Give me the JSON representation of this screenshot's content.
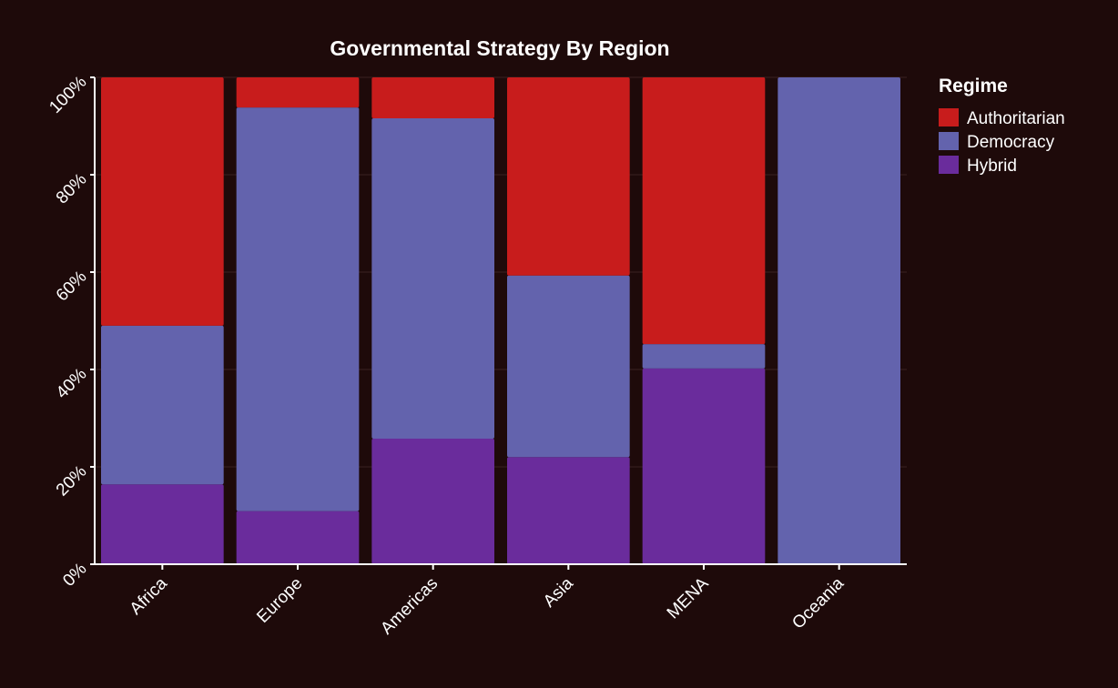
{
  "chart_data": {
    "type": "bar",
    "stacked": true,
    "normalized": true,
    "title": "Governmental Strategy By Region",
    "categories": [
      "Africa",
      "Europe",
      "Americas",
      "Asia",
      "MENA",
      "Oceania"
    ],
    "series": [
      {
        "name": "Hybrid",
        "color": "#6a2c9c",
        "values": [
          16.4,
          10.9,
          25.8,
          22.0,
          40.2,
          0
        ]
      },
      {
        "name": "Democracy",
        "color": "#6363ad",
        "values": [
          32.6,
          82.9,
          65.8,
          37.3,
          5.0,
          100
        ]
      },
      {
        "name": "Authoritarian",
        "color": "#c81c1c",
        "values": [
          51.0,
          6.2,
          8.4,
          40.7,
          54.8,
          0
        ]
      }
    ],
    "ylim": [
      0,
      100
    ],
    "yticks": [
      "0%",
      "20%",
      "40%",
      "60%",
      "80%",
      "100%"
    ],
    "ytick_values": [
      0,
      20,
      40,
      60,
      80,
      100
    ],
    "legend": {
      "title": "Regime",
      "position": "top-right",
      "items": [
        "Authoritarian",
        "Democracy",
        "Hybrid"
      ]
    },
    "grid": true
  },
  "colors": {
    "background": "#1e0a0a",
    "text": "#ffffff",
    "grid": "#3a2222"
  }
}
